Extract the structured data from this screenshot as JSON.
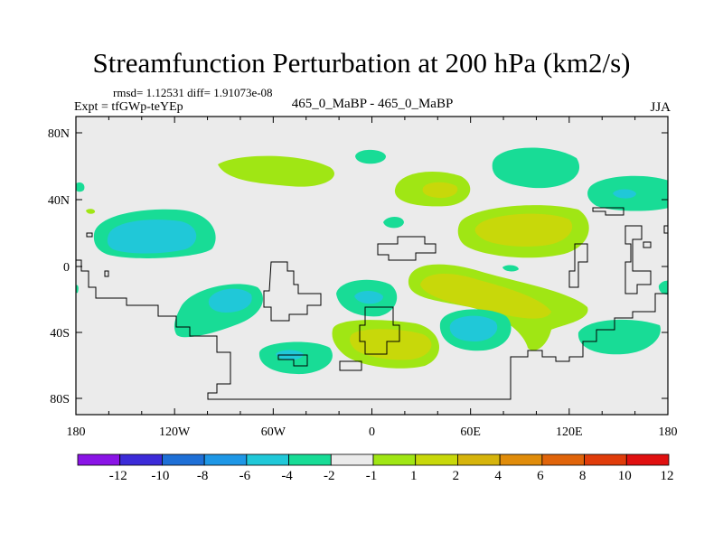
{
  "title": "Streamfunction Perturbation at 200 hPa (km2/s)",
  "stats_text": "rmsd= 1.12531 diff= 1.91073e-08",
  "experiment": "Expt = tfGWp-teYEp",
  "center_label": "465_0_MaBP - 465_0_MaBP",
  "season": "JJA",
  "map_data": {
    "type": "contour_map",
    "variable": "Streamfunction Perturbation",
    "level": "200 hPa",
    "units": "km2/s",
    "lat_ticks": [
      "80N",
      "40N",
      "0",
      "40S",
      "80S"
    ],
    "lon_ticks": [
      "180",
      "120W",
      "60W",
      "0",
      "60E",
      "120E",
      "180"
    ],
    "colorbar": {
      "labels": [
        "-12",
        "-10",
        "-8",
        "-6",
        "-4",
        "-2",
        "-1",
        "1",
        "2",
        "4",
        "6",
        "8",
        "10",
        "12"
      ],
      "colors": [
        "#8a14e6",
        "#3c2bd8",
        "#1e6fd6",
        "#1e97e6",
        "#20c8d8",
        "#18dc96",
        "#ebebeb",
        "#a0e614",
        "#c8d80a",
        "#d6b40c",
        "#e08c0a",
        "#e0640a",
        "#e03c0a",
        "#e01010"
      ]
    }
  }
}
